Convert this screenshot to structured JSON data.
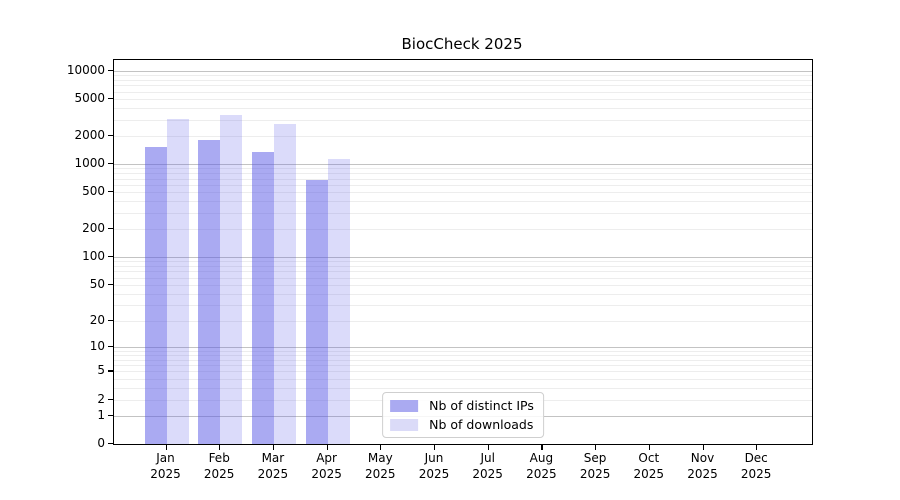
{
  "chart_data": {
    "type": "bar",
    "title": "BiocCheck 2025",
    "y_axis": {
      "scale": "log10(value+1)",
      "range": [
        0,
        12000
      ],
      "ticks": [
        10000,
        5000,
        2000,
        1000,
        500,
        200,
        100,
        50,
        20,
        10,
        5,
        2,
        1,
        0
      ],
      "major_gridlines": [
        1,
        10,
        100,
        1000,
        10000
      ],
      "minor_gridline_pattern": "2-9 per decade",
      "grid": true
    },
    "categories": [
      {
        "month": "Jan",
        "year": "2025"
      },
      {
        "month": "Feb",
        "year": "2025"
      },
      {
        "month": "Mar",
        "year": "2025"
      },
      {
        "month": "Apr",
        "year": "2025"
      },
      {
        "month": "May",
        "year": "2025"
      },
      {
        "month": "Jun",
        "year": "2025"
      },
      {
        "month": "Jul",
        "year": "2025"
      },
      {
        "month": "Aug",
        "year": "2025"
      },
      {
        "month": "Sep",
        "year": "2025"
      },
      {
        "month": "Oct",
        "year": "2025"
      },
      {
        "month": "Nov",
        "year": "2025"
      },
      {
        "month": "Dec",
        "year": "2025"
      }
    ],
    "series": [
      {
        "name": "Nb of distinct IPs",
        "color": "rgba(85,85,230,0.50)",
        "legend_color": "#aaaaf1",
        "values": [
          1520,
          1800,
          1350,
          680,
          null,
          null,
          null,
          null,
          null,
          null,
          null,
          null
        ]
      },
      {
        "name": "Nb of downloads",
        "color": "rgba(85,85,230,0.21)",
        "legend_color": "#dbdbf8",
        "values": [
          3030,
          3360,
          2720,
          1150,
          null,
          null,
          null,
          null,
          null,
          null,
          null,
          null
        ]
      }
    ],
    "legend_position": "lower center"
  }
}
